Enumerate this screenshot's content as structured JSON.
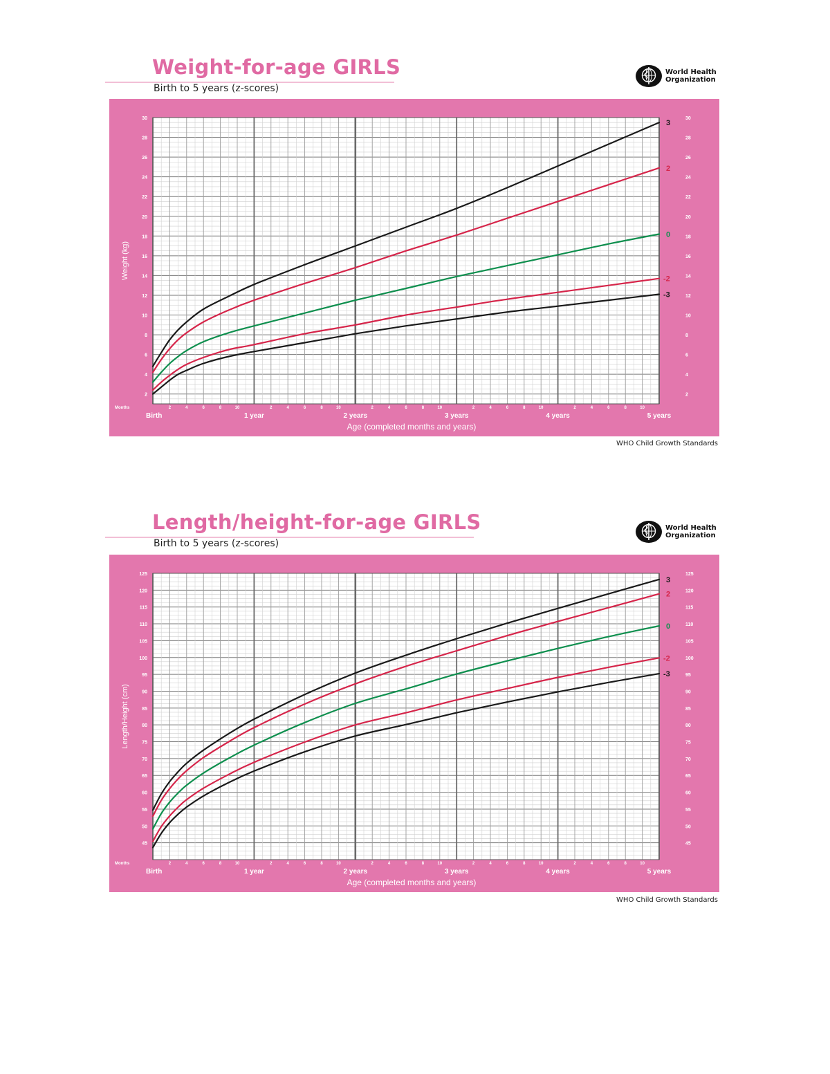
{
  "header": {
    "org_line1": "World Health",
    "org_line2": "Organization",
    "footer": "WHO Child Growth Standards",
    "logo_icon": "who-emblem-icon"
  },
  "colors": {
    "pink_panel": "#e377ad",
    "title_pink": "#e06aa3",
    "sd3": "#1a1a1a",
    "sd2": "#d6254a",
    "median": "#0e8f4e"
  },
  "chart_data": [
    {
      "type": "line",
      "title": "Weight-for-age GIRLS",
      "subtitle": "Birth to 5 years (z-scores)",
      "ylabel": "Weight (kg)",
      "xlabel": "Age (completed months and years)",
      "months_label": "Months",
      "x_unit": "months",
      "xlim": [
        0,
        60
      ],
      "ylim": [
        1,
        30
      ],
      "y_ticks": [
        2,
        4,
        6,
        8,
        10,
        12,
        14,
        16,
        18,
        20,
        22,
        24,
        26,
        28,
        30
      ],
      "month_ticks": [
        "2",
        "4",
        "6",
        "8",
        "10",
        "2",
        "4",
        "6",
        "8",
        "10",
        "2",
        "4",
        "6",
        "8",
        "10",
        "2",
        "4",
        "6",
        "8",
        "10",
        "2",
        "4",
        "6",
        "8",
        "10"
      ],
      "year_labels": [
        "Birth",
        "1 year",
        "2 years",
        "3 years",
        "4 years",
        "5 years"
      ],
      "grid": true,
      "x": [
        0,
        1,
        2,
        3,
        4,
        6,
        9,
        12,
        18,
        24,
        30,
        36,
        42,
        48,
        54,
        60
      ],
      "series": [
        {
          "name": "3",
          "color": "#1a1a1a",
          "values": [
            4.8,
            6.2,
            7.5,
            8.5,
            9.3,
            10.6,
            11.9,
            13.1,
            15.1,
            17.0,
            18.9,
            20.8,
            22.9,
            25.1,
            27.3,
            29.5
          ]
        },
        {
          "name": "2",
          "color": "#d6254a",
          "values": [
            4.2,
            5.5,
            6.6,
            7.5,
            8.2,
            9.3,
            10.5,
            11.5,
            13.2,
            14.8,
            16.5,
            18.1,
            19.8,
            21.5,
            23.2,
            24.9
          ]
        },
        {
          "name": "0",
          "color": "#0e8f4e",
          "values": [
            3.2,
            4.2,
            5.1,
            5.8,
            6.4,
            7.3,
            8.2,
            8.9,
            10.2,
            11.5,
            12.7,
            13.9,
            15.0,
            16.1,
            17.2,
            18.2
          ]
        },
        {
          "name": "-2",
          "color": "#d6254a",
          "values": [
            2.4,
            3.2,
            3.9,
            4.5,
            5.0,
            5.7,
            6.5,
            7.0,
            8.1,
            9.0,
            10.0,
            10.8,
            11.6,
            12.3,
            13.0,
            13.7
          ]
        },
        {
          "name": "-3",
          "color": "#1a1a1a",
          "values": [
            2.0,
            2.7,
            3.4,
            4.0,
            4.4,
            5.1,
            5.8,
            6.3,
            7.2,
            8.1,
            8.9,
            9.6,
            10.3,
            10.9,
            11.5,
            12.1
          ]
        }
      ]
    },
    {
      "type": "line",
      "title": "Length/height-for-age GIRLS",
      "subtitle": "Birth to 5 years (z-scores)",
      "ylabel": "Length/Height (cm)",
      "xlabel": "Age (completed months and years)",
      "months_label": "Months",
      "x_unit": "months",
      "xlim": [
        0,
        60
      ],
      "ylim": [
        40,
        125
      ],
      "y_ticks": [
        45,
        50,
        55,
        60,
        65,
        70,
        75,
        80,
        85,
        90,
        95,
        100,
        105,
        110,
        115,
        120,
        125
      ],
      "month_ticks": [
        "2",
        "4",
        "6",
        "8",
        "10",
        "2",
        "4",
        "6",
        "8",
        "10",
        "2",
        "4",
        "6",
        "8",
        "10",
        "2",
        "4",
        "6",
        "8",
        "10",
        "2",
        "4",
        "6",
        "8",
        "10"
      ],
      "year_labels": [
        "Birth",
        "1 year",
        "2 years",
        "3 years",
        "4 years",
        "5 years"
      ],
      "grid": true,
      "x": [
        0,
        1,
        2,
        3,
        4,
        6,
        9,
        12,
        18,
        24,
        30,
        36,
        42,
        48,
        54,
        60
      ],
      "series": [
        {
          "name": "3",
          "color": "#1a1a1a",
          "values": [
            54.7,
            59.5,
            63.2,
            66.1,
            68.6,
            72.5,
            77.4,
            81.7,
            89.0,
            95.4,
            100.7,
            105.6,
            110.2,
            114.6,
            118.9,
            123.2
          ]
        },
        {
          "name": "2",
          "color": "#d6254a",
          "values": [
            52.9,
            57.6,
            61.1,
            64.0,
            66.4,
            70.3,
            75.0,
            79.2,
            86.2,
            92.2,
            97.4,
            102.0,
            106.5,
            110.7,
            114.8,
            118.9
          ]
        },
        {
          "name": "0",
          "color": "#0e8f4e",
          "values": [
            49.1,
            53.7,
            57.1,
            59.8,
            62.1,
            65.7,
            70.1,
            74.0,
            80.7,
            86.4,
            90.7,
            95.1,
            99.0,
            102.7,
            106.2,
            109.4
          ]
        },
        {
          "name": "-2",
          "color": "#d6254a",
          "values": [
            45.4,
            49.8,
            53.0,
            55.6,
            57.8,
            61.2,
            65.3,
            68.9,
            74.9,
            80.0,
            83.6,
            87.4,
            90.8,
            94.1,
            97.1,
            99.9
          ]
        },
        {
          "name": "-3",
          "color": "#1a1a1a",
          "values": [
            43.6,
            47.8,
            51.0,
            53.5,
            55.6,
            58.9,
            62.9,
            66.3,
            72.0,
            76.7,
            80.1,
            83.6,
            86.8,
            89.8,
            92.6,
            95.2
          ]
        }
      ]
    }
  ]
}
